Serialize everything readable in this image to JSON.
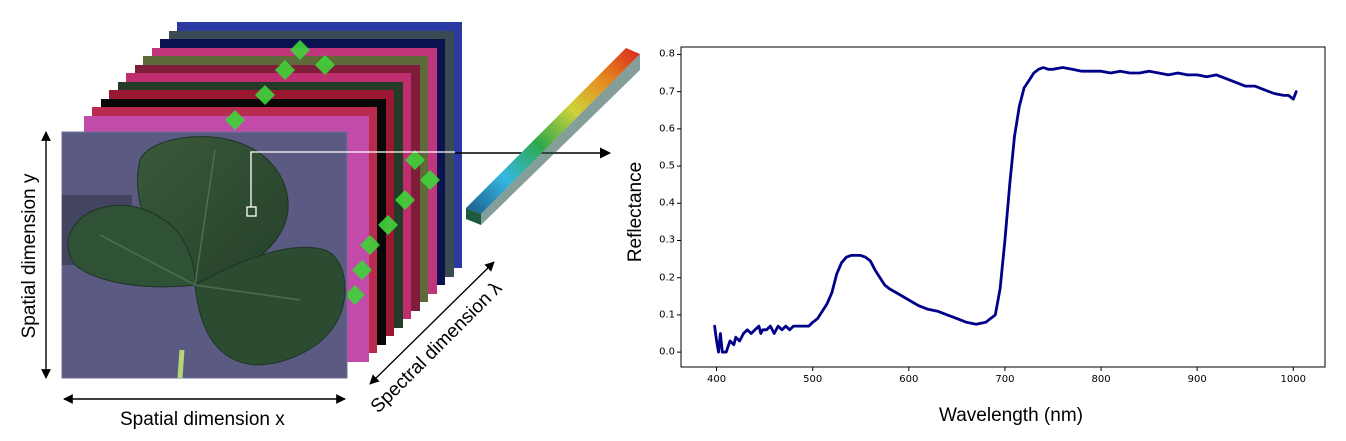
{
  "figure": {
    "left_panel": {
      "x_label": "Spatial dimension x",
      "y_label": "Spatial dimension y",
      "lambda_label": "Spectral dimension λ"
    }
  },
  "chart_data": {
    "type": "line",
    "xlabel": "Wavelength (nm)",
    "ylabel": "Reflectance",
    "xlim": [
      363,
      1033
    ],
    "ylim": [
      -0.04,
      0.82
    ],
    "xticks": [
      400,
      500,
      600,
      700,
      800,
      900,
      1000
    ],
    "yticks": [
      0.0,
      0.1,
      0.2,
      0.3,
      0.4,
      0.5,
      0.6,
      0.7,
      0.8
    ],
    "grid": false,
    "series": [
      {
        "color": "#00008b",
        "x": [
          398,
          400,
          402,
          404,
          406,
          410,
          414,
          418,
          420,
          424,
          428,
          432,
          436,
          440,
          444,
          446,
          448,
          452,
          456,
          460,
          464,
          468,
          472,
          476,
          480,
          484,
          488,
          492,
          496,
          500,
          505,
          510,
          515,
          520,
          525,
          530,
          535,
          540,
          545,
          550,
          555,
          560,
          565,
          570,
          575,
          580,
          590,
          600,
          610,
          620,
          630,
          640,
          650,
          660,
          670,
          680,
          690,
          695,
          700,
          705,
          710,
          715,
          720,
          725,
          730,
          735,
          740,
          745,
          750,
          760,
          770,
          780,
          790,
          800,
          810,
          820,
          830,
          840,
          850,
          860,
          870,
          880,
          890,
          900,
          910,
          920,
          930,
          940,
          950,
          960,
          970,
          980,
          990,
          995,
          1000,
          1003
        ],
        "y": [
          0.07,
          0.03,
          0.0,
          0.05,
          0.0,
          0.0,
          0.03,
          0.02,
          0.04,
          0.03,
          0.05,
          0.06,
          0.05,
          0.06,
          0.07,
          0.05,
          0.06,
          0.06,
          0.07,
          0.05,
          0.07,
          0.06,
          0.07,
          0.06,
          0.07,
          0.07,
          0.07,
          0.07,
          0.07,
          0.08,
          0.09,
          0.11,
          0.13,
          0.16,
          0.21,
          0.24,
          0.255,
          0.26,
          0.26,
          0.26,
          0.255,
          0.245,
          0.22,
          0.2,
          0.18,
          0.17,
          0.155,
          0.14,
          0.125,
          0.115,
          0.11,
          0.1,
          0.09,
          0.08,
          0.075,
          0.08,
          0.1,
          0.17,
          0.3,
          0.45,
          0.58,
          0.66,
          0.71,
          0.73,
          0.75,
          0.76,
          0.765,
          0.76,
          0.76,
          0.765,
          0.76,
          0.755,
          0.755,
          0.755,
          0.75,
          0.755,
          0.75,
          0.75,
          0.755,
          0.75,
          0.745,
          0.75,
          0.745,
          0.745,
          0.74,
          0.745,
          0.735,
          0.725,
          0.715,
          0.715,
          0.705,
          0.695,
          0.69,
          0.69,
          0.68,
          0.7
        ]
      }
    ]
  }
}
